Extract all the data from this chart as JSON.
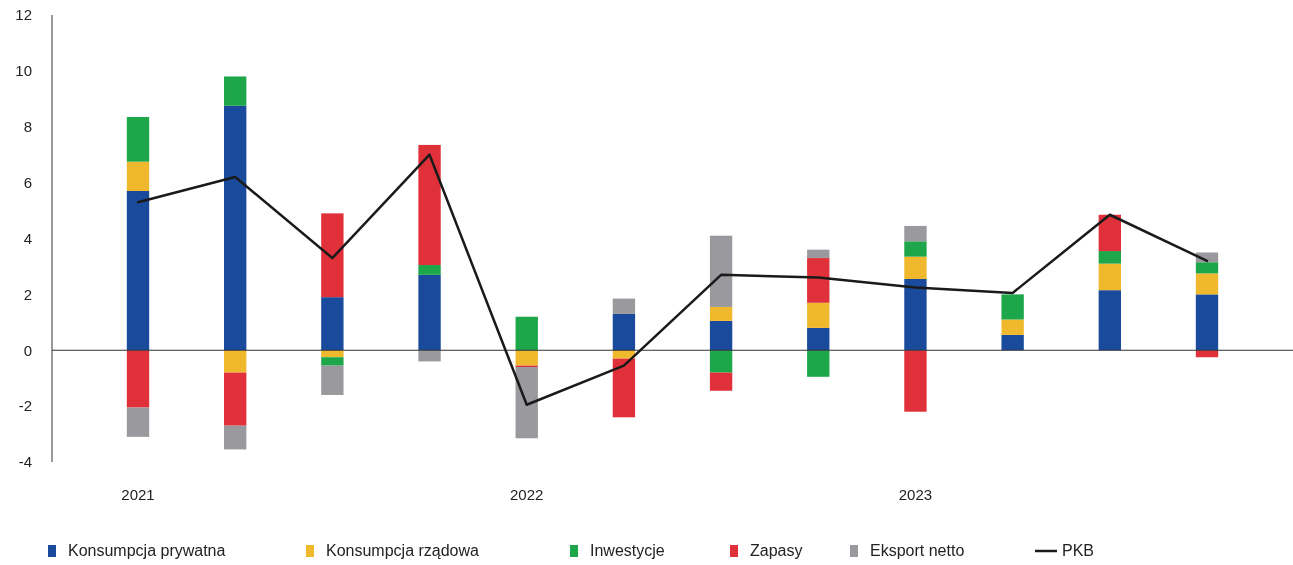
{
  "chart_data": {
    "type": "bar",
    "stacked": true,
    "categories": [
      "2021",
      null,
      null,
      null,
      "2022",
      null,
      null,
      null,
      "2023",
      null,
      null,
      null
    ],
    "series": [
      {
        "name": "Konsumpcja prywatna",
        "color": "#1a4a9c",
        "values": [
          5.7,
          8.75,
          1.9,
          2.7,
          null,
          1.3,
          1.05,
          0.8,
          2.55,
          0.55,
          2.15,
          2.0
        ]
      },
      {
        "name": "Konsumpcja rządowa",
        "color": "#f0b92d",
        "values": [
          1.05,
          -0.8,
          -0.25,
          null,
          -0.55,
          -0.3,
          0.5,
          0.9,
          0.8,
          0.55,
          0.95,
          0.75
        ]
      },
      {
        "name": "Inwestycje",
        "color": "#1ea64a",
        "values": [
          1.6,
          1.05,
          -0.3,
          0.35,
          1.2,
          null,
          -0.8,
          -0.95,
          0.55,
          0.9,
          0.45,
          0.4
        ]
      },
      {
        "name": "Zapasy",
        "color": "#e0303a",
        "values": [
          -2.05,
          -1.9,
          3.0,
          4.3,
          -0.05,
          -2.1,
          -0.65,
          1.6,
          -2.2,
          null,
          1.3,
          -0.25
        ]
      },
      {
        "name": "Eksport netto",
        "color": "#9a9a9e",
        "values": [
          -1.05,
          -0.85,
          -1.05,
          -0.4,
          -2.55,
          0.55,
          2.55,
          0.3,
          0.55,
          null,
          null,
          0.35
        ]
      },
      {
        "name": "PKB",
        "type": "line",
        "color": "#1a1a1a",
        "values": [
          5.3,
          6.2,
          3.3,
          7.0,
          -1.95,
          -0.55,
          2.7,
          2.6,
          2.25,
          2.05,
          4.85,
          3.2
        ]
      }
    ],
    "ylim": [
      -4,
      12
    ],
    "yticks": [
      -4,
      -2,
      0,
      2,
      4,
      6,
      8,
      10,
      12
    ],
    "legend": "bottom"
  }
}
